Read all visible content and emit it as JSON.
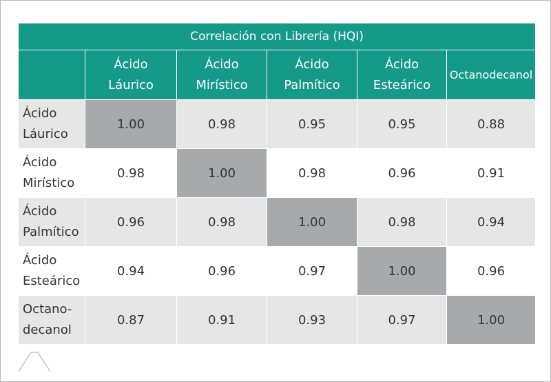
{
  "chart_data": {
    "type": "table",
    "title": "Correlación con Librería (HQI)",
    "columns": [
      [
        "Ácido",
        "Láurico"
      ],
      [
        "Ácido",
        "Mirístico"
      ],
      [
        "Ácido",
        "Palmítico"
      ],
      [
        "Ácido",
        "Esteárico"
      ],
      [
        "Octanodecanol"
      ]
    ],
    "rows": [
      {
        "label": [
          "Ácido",
          "Láurico"
        ],
        "values": [
          "1.00",
          "0.98",
          "0.95",
          "0.95",
          "0.88"
        ]
      },
      {
        "label": [
          "Ácido",
          "Mirístico"
        ],
        "values": [
          "0.98",
          "1.00",
          "0.98",
          "0.96",
          "0.91"
        ]
      },
      {
        "label": [
          "Ácido",
          "Palmítico"
        ],
        "values": [
          "0.96",
          "0.98",
          "1.00",
          "0.98",
          "0.94"
        ]
      },
      {
        "label": [
          "Ácido",
          "Esteárico"
        ],
        "values": [
          "0.94",
          "0.96",
          "0.97",
          "1.00",
          "0.96"
        ]
      },
      {
        "label": [
          "Octano-",
          "decanol"
        ],
        "values": [
          "0.87",
          "0.91",
          "0.93",
          "0.97",
          "1.00"
        ]
      }
    ],
    "colors": {
      "header": "#159a8a",
      "diagonal": "#a8a9ab",
      "stripe": "#e6e6e6"
    }
  }
}
